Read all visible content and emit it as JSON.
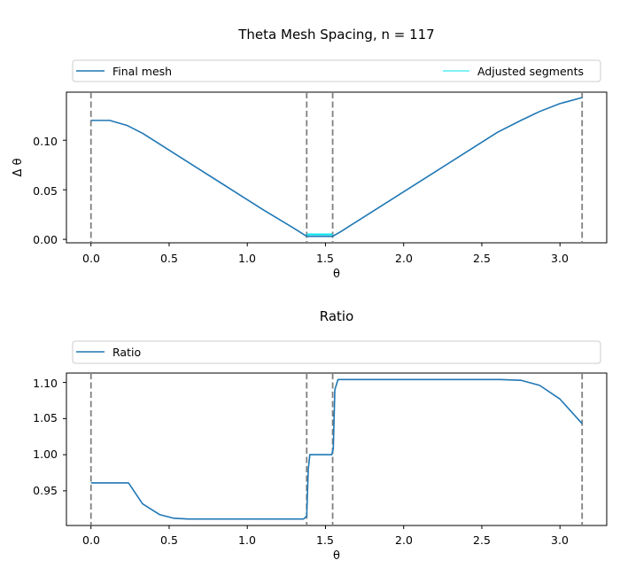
{
  "colors": {
    "primary": "#1f77b4",
    "adjusted": "#00e5ee",
    "vline": "#808080"
  },
  "chart_data": [
    {
      "type": "line",
      "title": "Theta Mesh Spacing, n = 117",
      "xlabel": "θ",
      "ylabel": "Δ θ",
      "xlim": [
        -0.157,
        3.299
      ],
      "ylim": [
        -0.0035,
        0.1485
      ],
      "xticks": [
        0.0,
        0.5,
        1.0,
        1.5,
        2.0,
        2.5,
        3.0
      ],
      "xtick_labels": [
        "0.0",
        "0.5",
        "1.0",
        "1.5",
        "2.0",
        "2.5",
        "3.0"
      ],
      "yticks": [
        0.0,
        0.05,
        0.1
      ],
      "ytick_labels": [
        "0.00",
        "0.05",
        "0.10"
      ],
      "legend": {
        "placement": "top",
        "entries": [
          "Final mesh",
          "Adjusted segments"
        ]
      },
      "vlines": [
        0.0,
        1.38,
        1.546,
        3.1416
      ],
      "series": [
        {
          "name": "Final mesh",
          "x": [
            0.0,
            0.06,
            0.12,
            0.23,
            0.33,
            0.42,
            0.5,
            0.7,
            0.9,
            1.1,
            1.3,
            1.38,
            1.546,
            1.6,
            1.8,
            2.0,
            2.2,
            2.4,
            2.6,
            2.75,
            2.87,
            3.0,
            3.1416
          ],
          "y": [
            0.12,
            0.12,
            0.12,
            0.115,
            0.107,
            0.098,
            0.09,
            0.07,
            0.05,
            0.03,
            0.011,
            0.003,
            0.003,
            0.008,
            0.028,
            0.048,
            0.068,
            0.088,
            0.108,
            0.12,
            0.129,
            0.137,
            0.143
          ]
        },
        {
          "name": "Adjusted segments",
          "x": [
            1.38,
            1.546
          ],
          "y": [
            0.005,
            0.005
          ]
        }
      ]
    },
    {
      "type": "line",
      "title": "Ratio",
      "xlabel": "θ",
      "ylabel": "",
      "xlim": [
        -0.157,
        3.299
      ],
      "ylim": [
        0.902,
        1.113
      ],
      "xticks": [
        0.0,
        0.5,
        1.0,
        1.5,
        2.0,
        2.5,
        3.0
      ],
      "xtick_labels": [
        "0.0",
        "0.5",
        "1.0",
        "1.5",
        "2.0",
        "2.5",
        "3.0"
      ],
      "yticks": [
        0.95,
        1.0,
        1.05,
        1.1
      ],
      "ytick_labels": [
        "0.95",
        "1.00",
        "1.05",
        "1.10"
      ],
      "legend": {
        "placement": "top",
        "entries": [
          "Ratio"
        ]
      },
      "vlines": [
        0.0,
        1.38,
        1.546,
        3.1416
      ],
      "series": [
        {
          "name": "Ratio",
          "x": [
            0.0,
            0.1,
            0.24,
            0.33,
            0.44,
            0.53,
            0.62,
            0.8,
            1.0,
            1.2,
            1.36,
            1.38,
            1.39,
            1.4,
            1.42,
            1.54,
            1.55,
            1.56,
            1.58,
            1.8,
            2.0,
            2.2,
            2.4,
            2.62,
            2.75,
            2.87,
            3.0,
            3.1416
          ],
          "y": [
            0.961,
            0.961,
            0.961,
            0.932,
            0.917,
            0.912,
            0.911,
            0.911,
            0.911,
            0.911,
            0.911,
            0.915,
            0.98,
            1.0,
            1.0,
            1.0,
            1.008,
            1.09,
            1.104,
            1.104,
            1.104,
            1.104,
            1.104,
            1.104,
            1.103,
            1.096,
            1.077,
            1.043
          ]
        }
      ]
    }
  ]
}
